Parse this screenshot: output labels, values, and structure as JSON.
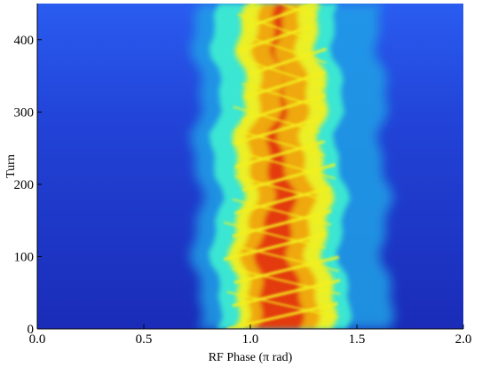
{
  "chart_data": {
    "type": "heatmap",
    "title": "",
    "xlabel": "RF Phase (π rad)",
    "ylabel": "Turn",
    "xlim": [
      0.0,
      2.0
    ],
    "ylim": [
      0,
      450
    ],
    "x_ticks": [
      "0.0",
      "0.5",
      "1.0",
      "1.5",
      "2.0"
    ],
    "y_ticks": [
      "0",
      "100",
      "200",
      "300",
      "400"
    ],
    "grid": false,
    "legend": "none",
    "colormap": [
      "#1a2fc8",
      "#1ea0e6",
      "#3ff0d0",
      "#f4f020",
      "#f0a010",
      "#e02810"
    ],
    "background_color": "#1a2fc8",
    "bunch": {
      "core_center_phase": 1.13,
      "core_phase_extent": [
        0.9,
        1.35
      ],
      "halo_phase_extent": [
        0.75,
        1.65
      ],
      "filament_period_turns": 32
    }
  }
}
